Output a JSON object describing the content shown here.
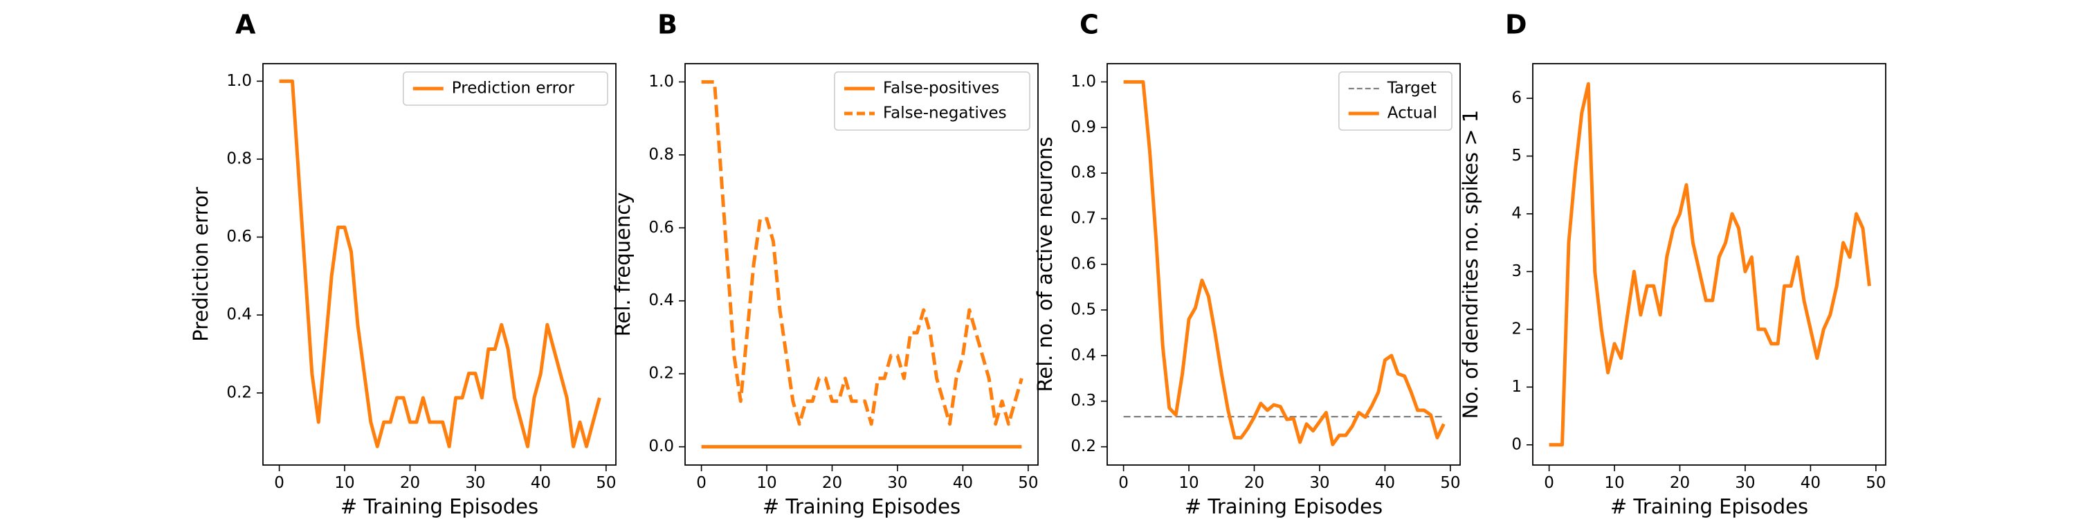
{
  "chart_data": [
    {
      "panel": "A",
      "type": "line",
      "xlabel": "# Training Episodes",
      "ylabel": "Prediction error",
      "xlim": [
        -2.5,
        51.5
      ],
      "ylim": [
        0.015,
        1.045
      ],
      "xticks": [
        0,
        10,
        20,
        30,
        40,
        50
      ],
      "yticks": [
        0.2,
        0.4,
        0.6,
        0.8,
        1.0
      ],
      "ytick_labels": [
        "0.2",
        "0.4",
        "0.6",
        "0.8",
        "1.0"
      ],
      "legend": "top-right",
      "grid": false,
      "series": [
        {
          "name": "Prediction error",
          "style": "solid",
          "color": "#ff7f0e",
          "x": [
            0,
            1,
            2,
            3,
            4,
            5,
            6,
            7,
            8,
            9,
            10,
            11,
            12,
            13,
            14,
            15,
            16,
            17,
            18,
            19,
            20,
            21,
            22,
            23,
            24,
            25,
            26,
            27,
            28,
            29,
            30,
            31,
            32,
            33,
            34,
            35,
            36,
            37,
            38,
            39,
            40,
            41,
            42,
            43,
            44,
            45,
            46,
            47,
            48,
            49
          ],
          "y": [
            1.0,
            1.0,
            1.0,
            0.75,
            0.5,
            0.25,
            0.125,
            0.3125,
            0.5,
            0.625,
            0.625,
            0.5625,
            0.375,
            0.25,
            0.125,
            0.0625,
            0.125,
            0.125,
            0.1875,
            0.1875,
            0.125,
            0.125,
            0.1875,
            0.125,
            0.125,
            0.125,
            0.0625,
            0.1875,
            0.1875,
            0.25,
            0.25,
            0.1875,
            0.3125,
            0.3125,
            0.375,
            0.3125,
            0.1875,
            0.125,
            0.0625,
            0.1875,
            0.25,
            0.375,
            0.3125,
            0.25,
            0.1875,
            0.0625,
            0.125,
            0.0625,
            0.125,
            0.1875
          ]
        }
      ]
    },
    {
      "panel": "B",
      "type": "line",
      "xlabel": "# Training Episodes",
      "ylabel": "Rel. frequency",
      "xlim": [
        -2.5,
        51.5
      ],
      "ylim": [
        -0.05,
        1.05
      ],
      "xticks": [
        0,
        10,
        20,
        30,
        40,
        50
      ],
      "yticks": [
        0.0,
        0.2,
        0.4,
        0.6,
        0.8,
        1.0
      ],
      "ytick_labels": [
        "0.0",
        "0.2",
        "0.4",
        "0.6",
        "0.8",
        "1.0"
      ],
      "legend": "top-right",
      "grid": false,
      "series": [
        {
          "name": "False-positives",
          "style": "solid",
          "color": "#ff7f0e",
          "x": [
            0,
            49
          ],
          "y": [
            0.0,
            0.0
          ]
        },
        {
          "name": "False-negatives",
          "style": "dashed",
          "color": "#ff7f0e",
          "x": [
            0,
            1,
            2,
            3,
            4,
            5,
            6,
            7,
            8,
            9,
            10,
            11,
            12,
            13,
            14,
            15,
            16,
            17,
            18,
            19,
            20,
            21,
            22,
            23,
            24,
            25,
            26,
            27,
            28,
            29,
            30,
            31,
            32,
            33,
            34,
            35,
            36,
            37,
            38,
            39,
            40,
            41,
            42,
            43,
            44,
            45,
            46,
            47,
            48,
            49
          ],
          "y": [
            1.0,
            1.0,
            1.0,
            0.75,
            0.5,
            0.25,
            0.125,
            0.3125,
            0.5,
            0.625,
            0.625,
            0.5625,
            0.375,
            0.25,
            0.125,
            0.0625,
            0.125,
            0.125,
            0.1875,
            0.1875,
            0.125,
            0.125,
            0.1875,
            0.125,
            0.125,
            0.125,
            0.0625,
            0.1875,
            0.1875,
            0.25,
            0.25,
            0.1875,
            0.3125,
            0.3125,
            0.375,
            0.3125,
            0.1875,
            0.125,
            0.0625,
            0.1875,
            0.25,
            0.375,
            0.3125,
            0.25,
            0.1875,
            0.0625,
            0.125,
            0.0625,
            0.125,
            0.1875
          ]
        }
      ]
    },
    {
      "panel": "C",
      "type": "line",
      "xlabel": "# Training Episodes",
      "ylabel": "Rel. no. of active neurons",
      "xlim": [
        -2.5,
        51.5
      ],
      "ylim": [
        0.16,
        1.04
      ],
      "xticks": [
        0,
        10,
        20,
        30,
        40,
        50
      ],
      "yticks": [
        0.2,
        0.3,
        0.4,
        0.5,
        0.6,
        0.7,
        0.8,
        0.9,
        1.0
      ],
      "ytick_labels": [
        "0.2",
        "0.3",
        "0.4",
        "0.5",
        "0.6",
        "0.7",
        "0.8",
        "0.9",
        "1.0"
      ],
      "legend": "top-right",
      "grid": false,
      "series": [
        {
          "name": "Target",
          "style": "dashed",
          "color": "#808080",
          "x": [
            0,
            49
          ],
          "y": [
            0.266,
            0.266
          ]
        },
        {
          "name": "Actual",
          "style": "solid",
          "color": "#ff7f0e",
          "x": [
            0,
            1,
            2,
            3,
            4,
            5,
            6,
            7,
            8,
            9,
            10,
            11,
            12,
            13,
            14,
            15,
            16,
            17,
            18,
            19,
            20,
            21,
            22,
            23,
            24,
            25,
            26,
            27,
            28,
            29,
            30,
            31,
            32,
            33,
            34,
            35,
            36,
            37,
            38,
            39,
            40,
            41,
            42,
            43,
            44,
            45,
            46,
            47,
            48,
            49
          ],
          "y": [
            1.0,
            1.0,
            1.0,
            1.0,
            0.85,
            0.65,
            0.42,
            0.285,
            0.27,
            0.36,
            0.48,
            0.505,
            0.565,
            0.53,
            0.45,
            0.36,
            0.28,
            0.22,
            0.22,
            0.24,
            0.265,
            0.295,
            0.28,
            0.292,
            0.288,
            0.26,
            0.262,
            0.21,
            0.25,
            0.235,
            0.255,
            0.275,
            0.205,
            0.225,
            0.225,
            0.245,
            0.275,
            0.265,
            0.29,
            0.32,
            0.39,
            0.4,
            0.36,
            0.355,
            0.32,
            0.28,
            0.28,
            0.27,
            0.22,
            0.25
          ]
        }
      ]
    },
    {
      "panel": "D",
      "type": "line",
      "xlabel": "# Training Episodes",
      "ylabel": "No. of dendrites no. spikes > 1",
      "xlim": [
        -2.5,
        51.5
      ],
      "ylim": [
        -0.35,
        6.6
      ],
      "xticks": [
        0,
        10,
        20,
        30,
        40,
        50
      ],
      "yticks": [
        0,
        1,
        2,
        3,
        4,
        5,
        6
      ],
      "ytick_labels": [
        "0",
        "1",
        "2",
        "3",
        "4",
        "5",
        "6"
      ],
      "legend": "none",
      "grid": false,
      "series": [
        {
          "style": "solid",
          "color": "#ff7f0e",
          "x": [
            0,
            1,
            2,
            3,
            4,
            5,
            6,
            7,
            8,
            9,
            10,
            11,
            12,
            13,
            14,
            15,
            16,
            17,
            18,
            19,
            20,
            21,
            22,
            23,
            24,
            25,
            26,
            27,
            28,
            29,
            30,
            31,
            32,
            33,
            34,
            35,
            36,
            37,
            38,
            39,
            40,
            41,
            42,
            43,
            44,
            45,
            46,
            47,
            48,
            49
          ],
          "y": [
            0,
            0,
            0,
            3.5,
            4.75,
            5.75,
            6.25,
            3.0,
            2.0,
            1.25,
            1.75,
            1.5,
            2.25,
            3.0,
            2.25,
            2.75,
            2.75,
            2.25,
            3.25,
            3.75,
            4.0,
            4.5,
            3.5,
            3.0,
            2.5,
            2.5,
            3.25,
            3.5,
            4.0,
            3.75,
            3.0,
            3.25,
            2.0,
            2.0,
            1.75,
            1.75,
            2.75,
            2.75,
            3.25,
            2.5,
            2.0,
            1.5,
            2.0,
            2.25,
            2.75,
            3.5,
            3.25,
            4.0,
            3.75,
            2.75
          ]
        }
      ]
    }
  ]
}
